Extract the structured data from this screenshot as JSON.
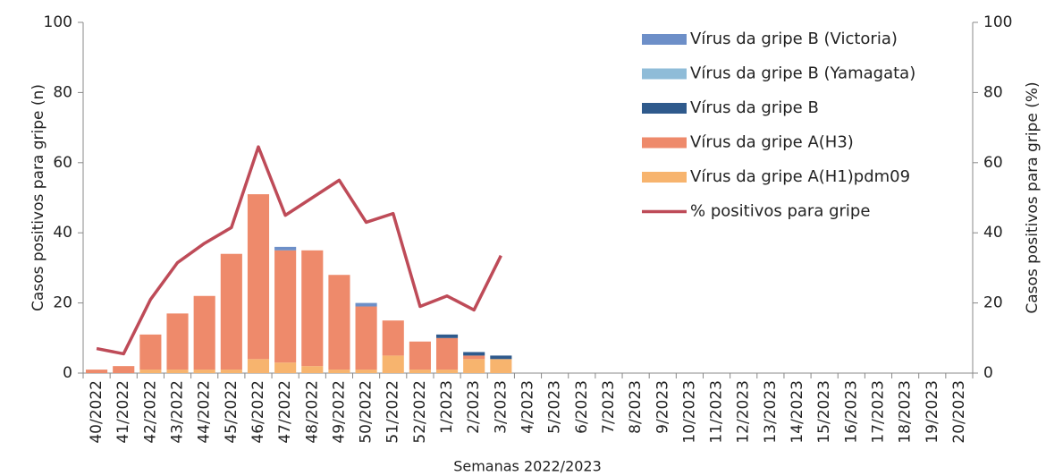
{
  "chart_data": {
    "type": "stacked-bar-line",
    "x_label": "Semanas 2022/2023",
    "y_label": "Casos positivos para gripe (n)",
    "y2_label": "Casos positivos para gripe (%)",
    "categories": [
      "40/2022",
      "41/2022",
      "42/2022",
      "43/2022",
      "44/2022",
      "45/2022",
      "46/2022",
      "47/2022",
      "48/2022",
      "49/2022",
      "50/2022",
      "51/2022",
      "52/2022",
      "1/2023",
      "2/2023",
      "3/2023",
      "4/2023",
      "5/2023",
      "6/2023",
      "7/2023",
      "8/2023",
      "9/2023",
      "10/2023",
      "11/2023",
      "12/2023",
      "13/2023",
      "14/2023",
      "15/2023",
      "16/2023",
      "17/2023",
      "18/2023",
      "19/2023",
      "20/2023"
    ],
    "ylim": [
      0,
      100
    ],
    "yticks": [
      0,
      20,
      40,
      60,
      80,
      100
    ],
    "y2lim": [
      0,
      100
    ],
    "y2ticks": [
      0,
      20,
      40,
      60,
      80,
      100
    ],
    "series": [
      {
        "name": "Vírus da gripe A(H1)pdm09",
        "color": "#f7b46e",
        "values": [
          0,
          0,
          1,
          1,
          1,
          1,
          4,
          3,
          2,
          1,
          1,
          5,
          1,
          1,
          4,
          4,
          null,
          null,
          null,
          null,
          null,
          null,
          null,
          null,
          null,
          null,
          null,
          null,
          null,
          null,
          null,
          null,
          null
        ]
      },
      {
        "name": "Vírus da gripe A(H3)",
        "color": "#ee8a6b",
        "values": [
          1,
          2,
          10,
          16,
          21,
          33,
          47,
          32,
          33,
          27,
          18,
          10,
          8,
          9,
          1,
          0,
          null,
          null,
          null,
          null,
          null,
          null,
          null,
          null,
          null,
          null,
          null,
          null,
          null,
          null,
          null,
          null,
          null
        ]
      },
      {
        "name": "Vírus da gripe B",
        "color": "#2f5a8c",
        "values": [
          0,
          0,
          0,
          0,
          0,
          0,
          0,
          0,
          0,
          0,
          0,
          0,
          0,
          1,
          1,
          1,
          null,
          null,
          null,
          null,
          null,
          null,
          null,
          null,
          null,
          null,
          null,
          null,
          null,
          null,
          null,
          null,
          null
        ]
      },
      {
        "name": "Vírus da gripe B (Yamagata)",
        "color": "#8fbcd8",
        "values": [
          0,
          0,
          0,
          0,
          0,
          0,
          0,
          0,
          0,
          0,
          0,
          0,
          0,
          0,
          0,
          0,
          null,
          null,
          null,
          null,
          null,
          null,
          null,
          null,
          null,
          null,
          null,
          null,
          null,
          null,
          null,
          null,
          null
        ]
      },
      {
        "name": "Vírus da gripe B (Victoria)",
        "color": "#6d8fc8",
        "values": [
          0,
          0,
          0,
          0,
          0,
          0,
          0,
          1,
          0,
          0,
          1,
          0,
          0,
          0,
          0,
          0,
          null,
          null,
          null,
          null,
          null,
          null,
          null,
          null,
          null,
          null,
          null,
          null,
          null,
          null,
          null,
          null,
          null
        ]
      },
      {
        "name": "% positivos para gripe",
        "color": "#be4b58",
        "axis": "y2",
        "line": true,
        "values": [
          7,
          5.5,
          21,
          31.5,
          37,
          41.5,
          64.5,
          45,
          50,
          55,
          43,
          45.5,
          19,
          22,
          18,
          33.5,
          null,
          null,
          null,
          null,
          null,
          null,
          null,
          null,
          null,
          null,
          null,
          null,
          null,
          null,
          null,
          null,
          null
        ]
      }
    ]
  }
}
